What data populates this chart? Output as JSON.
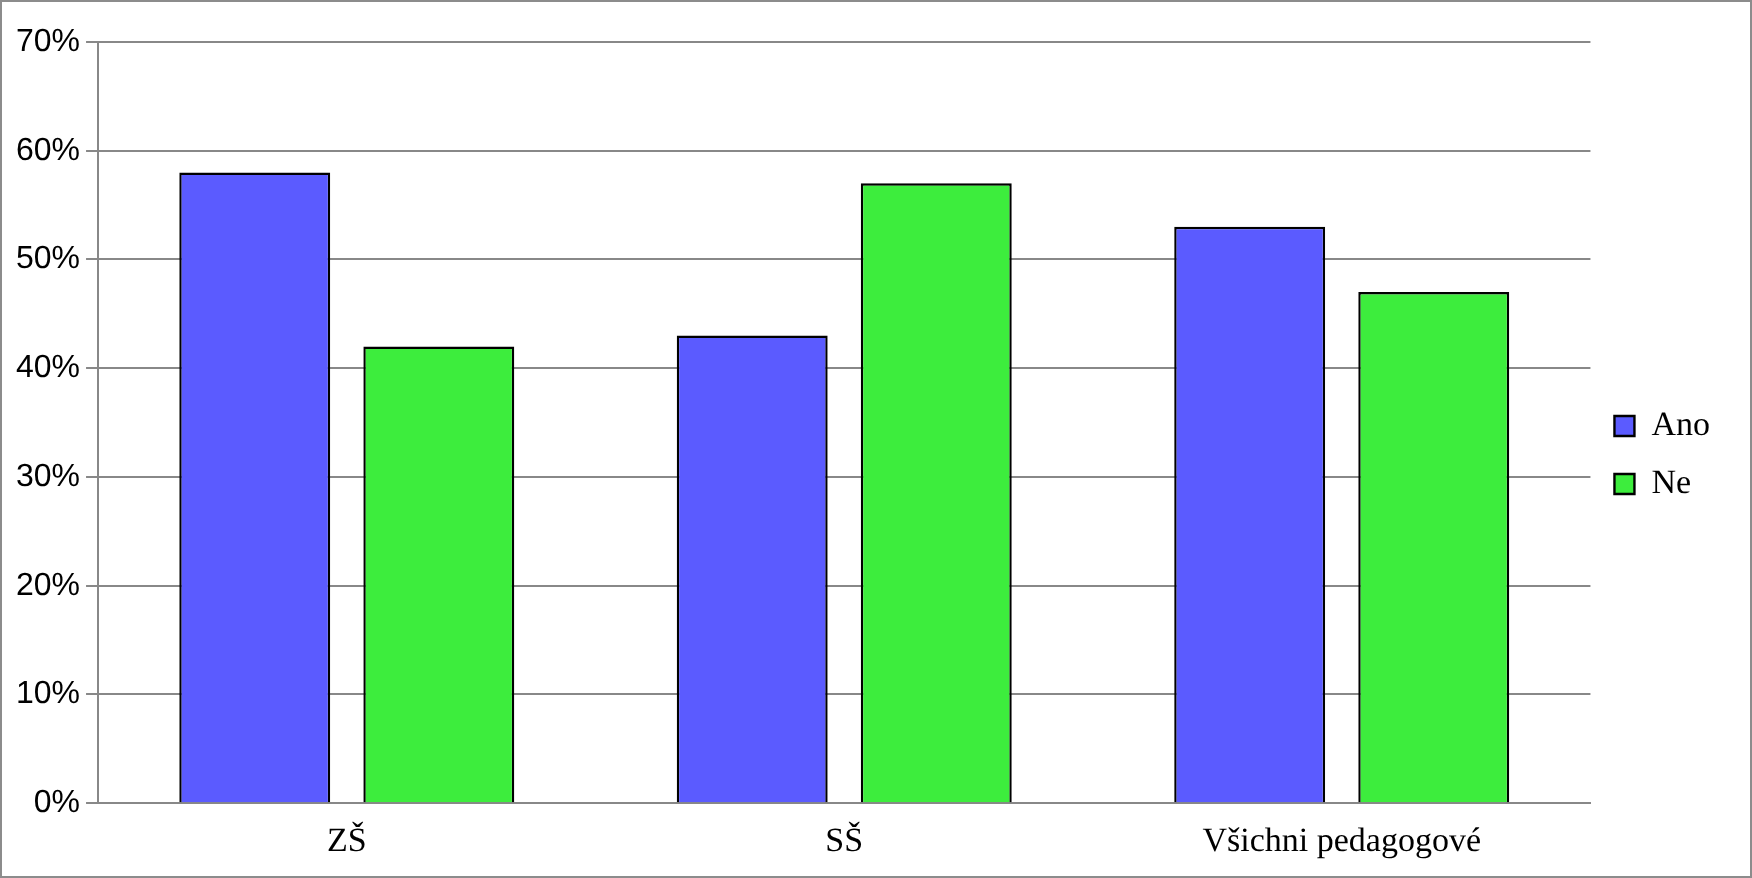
{
  "chart_data": {
    "type": "bar",
    "categories": [
      "ZŠ",
      "SŠ",
      "Všichni pedagogové"
    ],
    "series": [
      {
        "name": "Ano",
        "color": "#5b5bff",
        "values": [
          58,
          43,
          53
        ]
      },
      {
        "name": "Ne",
        "color": "#3ded3d",
        "values": [
          42,
          57,
          47
        ]
      }
    ],
    "ylim": [
      0,
      70
    ],
    "yticks": [
      {
        "value": 0,
        "label": "0%"
      },
      {
        "value": 10,
        "label": "10%"
      },
      {
        "value": 20,
        "label": "20%"
      },
      {
        "value": 30,
        "label": "30%"
      },
      {
        "value": 40,
        "label": "40%"
      },
      {
        "value": 50,
        "label": "50%"
      },
      {
        "value": 60,
        "label": "60%"
      },
      {
        "value": 70,
        "label": "70%"
      }
    ],
    "grid": "y",
    "legend": "right"
  }
}
